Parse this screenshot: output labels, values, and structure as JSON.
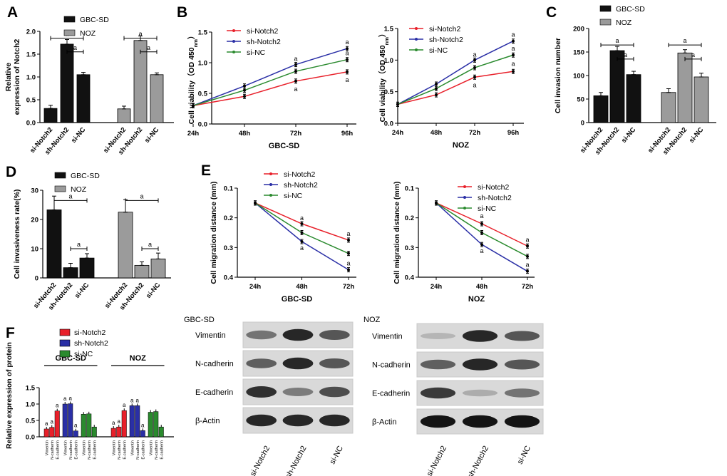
{
  "colors": {
    "red": "#e8202a",
    "blue": "#2a2fa6",
    "green": "#2a8a2e",
    "black": "#111111",
    "grey": "#9b9b9b"
  },
  "panels": {
    "A": "A",
    "B": "B",
    "C": "C",
    "D": "D",
    "E": "E",
    "F": "F"
  },
  "sig": "a",
  "chart_data": [
    {
      "id": "A",
      "type": "bar",
      "ylabel_lines": [
        "Relative",
        "expression of Notch2"
      ],
      "ylim": [
        0,
        2.0
      ],
      "yticks": [
        "0.0",
        "0.5",
        "1.0",
        "1.5",
        "2.0"
      ],
      "legend": [
        "GBC-SD",
        "NOZ"
      ],
      "categories": [
        "si-Notch2",
        "sh-Notch2",
        "si-NC"
      ],
      "series": [
        {
          "name": "GBC-SD",
          "values": [
            0.31,
            1.72,
            1.05
          ],
          "errors": [
            0.07,
            0.1,
            0.05
          ]
        },
        {
          "name": "NOZ",
          "values": [
            0.3,
            1.8,
            1.05
          ],
          "errors": [
            0.06,
            0.1,
            0.04
          ]
        }
      ]
    },
    {
      "id": "B1",
      "type": "line",
      "ylabel": "Cell viability（OD 450",
      "ylabel_sub": "nm",
      "ylabel_end": "）",
      "xlabel": "GBC-SD",
      "x": [
        "24h",
        "48h",
        "72h",
        "96h"
      ],
      "ylim": [
        0,
        1.5
      ],
      "yticks": [
        "0.0",
        "0.5",
        "1.0",
        "1.5"
      ],
      "series": [
        {
          "name": "si-Notch2",
          "values": [
            0.3,
            0.45,
            0.7,
            0.85
          ]
        },
        {
          "name": "sh-Notch2",
          "values": [
            0.3,
            0.62,
            0.97,
            1.23
          ]
        },
        {
          "name": "si-NC",
          "values": [
            0.3,
            0.55,
            0.86,
            1.05
          ]
        }
      ]
    },
    {
      "id": "B2",
      "type": "line",
      "ylabel": "Cell viability（OD 450",
      "ylabel_sub": "nm",
      "ylabel_end": "）",
      "xlabel": "NOZ",
      "x": [
        "24h",
        "48h",
        "72h",
        "96h"
      ],
      "ylim": [
        0,
        1.5
      ],
      "yticks": [
        "0.0",
        "0.5",
        "1.0",
        "1.5"
      ],
      "series": [
        {
          "name": "si-Notch2",
          "values": [
            0.3,
            0.45,
            0.73,
            0.82
          ]
        },
        {
          "name": "sh-Notch2",
          "values": [
            0.3,
            0.62,
            1.0,
            1.3
          ]
        },
        {
          "name": "si-NC",
          "values": [
            0.3,
            0.55,
            0.88,
            1.08
          ]
        }
      ]
    },
    {
      "id": "C",
      "type": "bar",
      "ylabel": "Cell invasion number",
      "ylim": [
        0,
        200
      ],
      "yticks": [
        "0",
        "50",
        "100",
        "150",
        "200"
      ],
      "legend": [
        "GBC-SD",
        "NOZ"
      ],
      "categories": [
        "si-Notch2",
        "sh-Notch2",
        "si-NC"
      ],
      "series": [
        {
          "name": "GBC-SD",
          "values": [
            57,
            153,
            102
          ],
          "errors": [
            7,
            9,
            7
          ]
        },
        {
          "name": "NOZ",
          "values": [
            64,
            148,
            97
          ],
          "errors": [
            8,
            7,
            8
          ]
        }
      ]
    },
    {
      "id": "D",
      "type": "bar",
      "ylabel": "Cell invasiveness rate(%)",
      "ylim": [
        0,
        30
      ],
      "yticks": [
        "0",
        "10",
        "20",
        "30"
      ],
      "legend": [
        "GBC-SD",
        "NOZ"
      ],
      "categories": [
        "si-Notch2",
        "sh-Notch2",
        "si-NC"
      ],
      "series": [
        {
          "name": "GBC-SD",
          "values": [
            23.3,
            3.5,
            6.8
          ],
          "errors": [
            4.7,
            1.5,
            1.5
          ]
        },
        {
          "name": "NOZ",
          "values": [
            22.5,
            4.3,
            6.5
          ],
          "errors": [
            4.3,
            1.2,
            2.0
          ]
        }
      ]
    },
    {
      "id": "E1",
      "type": "line",
      "ylabel": "Cell migration distance (mm)",
      "xlabel": "GBC-SD",
      "x": [
        "24h",
        "48h",
        "72h"
      ],
      "ylim": [
        0.1,
        0.4
      ],
      "yticks": [
        "0.1",
        "0.2",
        "0.3",
        "0.4"
      ],
      "inverted": true,
      "series": [
        {
          "name": "si-Notch2",
          "values": [
            0.15,
            0.22,
            0.275
          ]
        },
        {
          "name": "sh-Notch2",
          "values": [
            0.15,
            0.28,
            0.375
          ]
        },
        {
          "name": "si-NC",
          "values": [
            0.15,
            0.25,
            0.32
          ]
        }
      ]
    },
    {
      "id": "E2",
      "type": "line",
      "ylabel": "Cell migration distance (mm)",
      "xlabel": "NOZ",
      "x": [
        "24h",
        "48h",
        "72h"
      ],
      "ylim": [
        0.1,
        0.4
      ],
      "yticks": [
        "0.1",
        "0.2",
        "0.3",
        "0.4"
      ],
      "inverted": true,
      "series": [
        {
          "name": "si-Notch2",
          "values": [
            0.15,
            0.22,
            0.295
          ]
        },
        {
          "name": "sh-Notch2",
          "values": [
            0.15,
            0.29,
            0.38
          ]
        },
        {
          "name": "si-NC",
          "values": [
            0.15,
            0.25,
            0.33
          ]
        }
      ]
    },
    {
      "id": "F",
      "type": "bar",
      "ylabel": "Relative expression of protein",
      "ylim": [
        0,
        1.5
      ],
      "yticks": [
        "0.0",
        "0.5",
        "1.0",
        "1.5"
      ],
      "legend": [
        "si-Notch2",
        "sh-Notch2",
        "si-NC"
      ],
      "group_labels": [
        "GBC-SD",
        "NOZ"
      ],
      "proteins": [
        "Vimentin",
        "N-cadherin",
        "E-cadherin"
      ],
      "groups": [
        {
          "name": "GBC-SD",
          "series": [
            {
              "name": "si-Notch2",
              "values": [
                0.24,
                0.29,
                0.79
              ]
            },
            {
              "name": "sh-Notch2",
              "values": [
                1.0,
                1.01,
                0.18
              ]
            },
            {
              "name": "si-NC",
              "values": [
                0.69,
                0.7,
                0.3
              ]
            }
          ]
        },
        {
          "name": "NOZ",
          "series": [
            {
              "name": "si-Notch2",
              "values": [
                0.26,
                0.3,
                0.8
              ]
            },
            {
              "name": "sh-Notch2",
              "values": [
                0.95,
                0.95,
                0.19
              ]
            },
            {
              "name": "si-NC",
              "values": [
                0.75,
                0.77,
                0.3
              ]
            }
          ]
        }
      ]
    }
  ],
  "western_blot": {
    "gbc": {
      "title": "GBC-SD"
    },
    "noz": {
      "title": "NOZ"
    },
    "proteins": [
      "Vimentin",
      "N-cadherin",
      "E-cadherin",
      "β-Actin"
    ],
    "lanes": [
      "si-Notch2",
      "sh-Notch2",
      "si-NC"
    ]
  }
}
